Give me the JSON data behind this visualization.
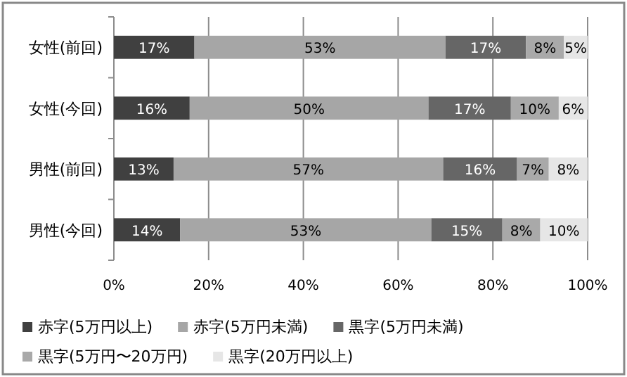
{
  "chart_data": {
    "type": "bar",
    "orientation": "horizontal",
    "stacked": true,
    "legend": "bottom",
    "grid": "x",
    "categories": [
      "女性(前回)",
      "女性(今回)",
      "男性(前回)",
      "男性(今回)"
    ],
    "series": [
      {
        "name": "赤字(5万円以上)",
        "color": "#404040",
        "values": [
          17,
          16.0,
          12.6,
          14
        ],
        "value_labels": [
          "17%",
          "16%",
          "13%",
          "14%"
        ]
      },
      {
        "name": "赤字(5万円未満)",
        "color": "#a6a6a6",
        "values": [
          53,
          50.4,
          56.9,
          53
        ],
        "value_labels": [
          "53%",
          "50%",
          "57%",
          "53%"
        ]
      },
      {
        "name": "黒字(5万円未満)",
        "color": "#666666",
        "values": [
          17,
          17.4,
          15.6,
          15
        ],
        "value_labels": [
          "17%",
          "17%",
          "16%",
          "15%"
        ]
      },
      {
        "name": "黒字(5万円〜20万円)",
        "color": "#a9a9a9",
        "values": [
          8,
          10.1,
          6.7,
          8
        ],
        "value_labels": [
          "8%",
          "10%",
          "7%",
          "8%"
        ]
      },
      {
        "name": "黒字(20万円以上)",
        "color": "#e6e6e6",
        "values": [
          5,
          6.1,
          8.2,
          10
        ],
        "value_labels": [
          "5%",
          "6%",
          "8%",
          "10%"
        ]
      }
    ],
    "xlim": [
      0,
      100
    ],
    "xticks": [
      {
        "value": 0,
        "label": "0%"
      },
      {
        "value": 20,
        "label": "20%"
      },
      {
        "value": 40,
        "label": "40%"
      },
      {
        "value": 60,
        "label": "60%"
      },
      {
        "value": 80,
        "label": "80%"
      },
      {
        "value": 100,
        "label": "100%"
      }
    ]
  }
}
